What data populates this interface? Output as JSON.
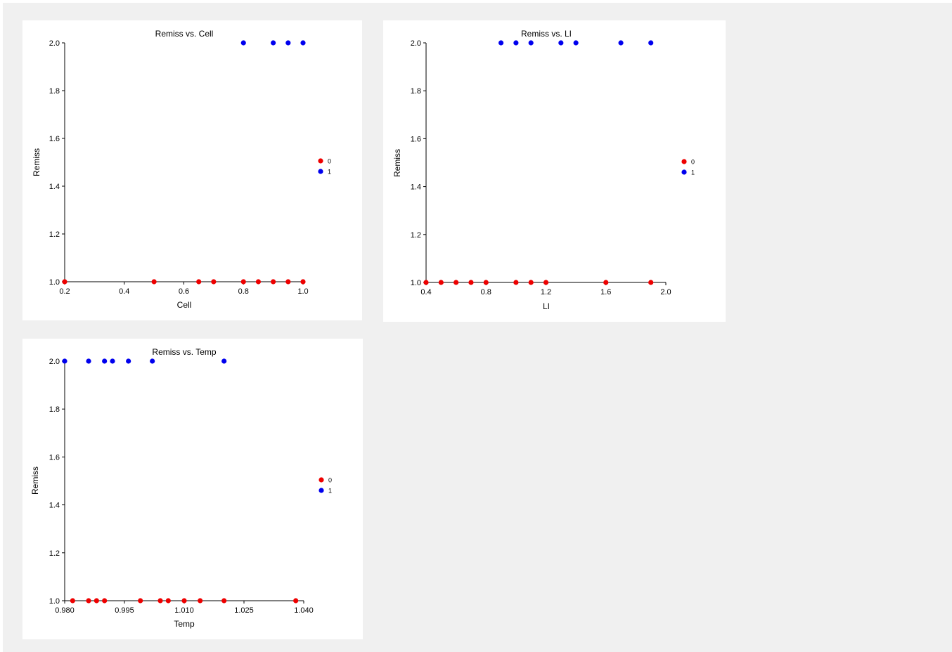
{
  "chart_data": [
    {
      "type": "scatter",
      "title": "Remiss vs. Cell",
      "xlabel": "Cell",
      "ylabel": "Remiss",
      "xlim": [
        0.2,
        1.0
      ],
      "ylim": [
        1.0,
        2.0
      ],
      "xticks": [
        "0.2",
        "0.4",
        "0.6",
        "0.8",
        "1.0"
      ],
      "yticks": [
        "1.0",
        "1.2",
        "1.4",
        "1.6",
        "1.8",
        "2.0"
      ],
      "legend_position": "right",
      "series": [
        {
          "name": "0",
          "color": "#ee0000",
          "x": [
            0.2,
            0.5,
            0.65,
            0.7,
            0.8,
            0.85,
            0.9,
            0.95,
            1.0
          ],
          "y": [
            1,
            1,
            1,
            1,
            1,
            1,
            1,
            1,
            1
          ]
        },
        {
          "name": "1",
          "color": "#0000ee",
          "x": [
            0.8,
            0.9,
            0.95,
            1.0
          ],
          "y": [
            2,
            2,
            2,
            2
          ]
        }
      ]
    },
    {
      "type": "scatter",
      "title": "Remiss vs. LI",
      "xlabel": "LI",
      "ylabel": "Remiss",
      "xlim": [
        0.4,
        2.0
      ],
      "ylim": [
        1.0,
        2.0
      ],
      "xticks": [
        "0.4",
        "0.8",
        "1.2",
        "1.6",
        "2.0"
      ],
      "yticks": [
        "1.0",
        "1.2",
        "1.4",
        "1.6",
        "1.8",
        "2.0"
      ],
      "legend_position": "right",
      "series": [
        {
          "name": "0",
          "color": "#ee0000",
          "x": [
            0.4,
            0.5,
            0.6,
            0.7,
            0.8,
            1.0,
            1.1,
            1.2,
            1.6,
            1.9
          ],
          "y": [
            1,
            1,
            1,
            1,
            1,
            1,
            1,
            1,
            1,
            1
          ]
        },
        {
          "name": "1",
          "color": "#0000ee",
          "x": [
            0.9,
            1.0,
            1.1,
            1.3,
            1.4,
            1.7,
            1.9
          ],
          "y": [
            2,
            2,
            2,
            2,
            2,
            2,
            2
          ]
        }
      ]
    },
    {
      "type": "scatter",
      "title": "Remiss vs. Temp",
      "xlabel": "Temp",
      "ylabel": "Remiss",
      "xlim": [
        0.98,
        1.04
      ],
      "ylim": [
        1.0,
        2.0
      ],
      "xticks": [
        "0.980",
        "0.995",
        "1.010",
        "1.025",
        "1.040"
      ],
      "yticks": [
        "1.0",
        "1.2",
        "1.4",
        "1.6",
        "1.8",
        "2.0"
      ],
      "legend_position": "right",
      "series": [
        {
          "name": "0",
          "color": "#ee0000",
          "x": [
            0.982,
            0.986,
            0.988,
            0.99,
            0.999,
            1.004,
            1.006,
            1.01,
            1.014,
            1.02,
            1.038
          ],
          "y": [
            1,
            1,
            1,
            1,
            1,
            1,
            1,
            1,
            1,
            1,
            1
          ]
        },
        {
          "name": "1",
          "color": "#0000ee",
          "x": [
            0.98,
            0.986,
            0.99,
            0.992,
            0.996,
            1.002,
            1.02
          ],
          "y": [
            2,
            2,
            2,
            2,
            2,
            2,
            2
          ]
        }
      ]
    }
  ]
}
